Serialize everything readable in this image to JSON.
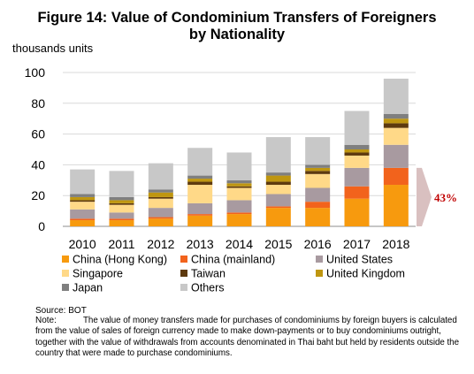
{
  "figure": {
    "title_line1": "Figure 14: Value of Condominium Transfers of Foreigners",
    "title_line2": "by Nationality",
    "unit_label": "thousands units"
  },
  "chart_data": {
    "type": "bar",
    "stacked": true,
    "title": "Figure 14: Value of Condominium Transfers of Foreigners by Nationality",
    "ylabel": "thousands units",
    "ylim": [
      0,
      100
    ],
    "yticks": [
      0,
      20,
      40,
      60,
      80,
      100
    ],
    "grid": true,
    "legend_position": "bottom",
    "categories": [
      "2010",
      "2011",
      "2012",
      "2013",
      "2014",
      "2015",
      "2016",
      "2017",
      "2018"
    ],
    "series": [
      {
        "name": "China (Hong Kong)",
        "color": "#f79a0e",
        "values": [
          4,
          4,
          5,
          7,
          8,
          12,
          12,
          18,
          27
        ]
      },
      {
        "name": "China (mainland)",
        "color": "#f2631c",
        "values": [
          1,
          1,
          1,
          1,
          1,
          1,
          4,
          8,
          11
        ]
      },
      {
        "name": "United States",
        "color": "#a89aa0",
        "values": [
          6,
          4,
          6,
          7,
          8,
          8,
          9,
          12,
          15
        ]
      },
      {
        "name": "Singapore",
        "color": "#ffd988",
        "values": [
          5,
          5,
          6,
          12,
          8,
          6,
          9,
          8,
          11
        ]
      },
      {
        "name": "Taiwan",
        "color": "#5e3a0e",
        "values": [
          1,
          1,
          1,
          2,
          1,
          2,
          2,
          2,
          3
        ]
      },
      {
        "name": "United Kingdom",
        "color": "#bf9610",
        "values": [
          2,
          2,
          3,
          2,
          2,
          4,
          2,
          2,
          3
        ]
      },
      {
        "name": "Japan",
        "color": "#7f7f7f",
        "values": [
          2,
          2,
          2,
          2,
          2,
          2,
          2,
          3,
          3
        ]
      },
      {
        "name": "Others",
        "color": "#c8c8c8",
        "values": [
          16,
          17,
          17,
          18,
          18,
          23,
          18,
          22,
          23
        ]
      }
    ],
    "annotation": {
      "text": "43%",
      "color": "#c00000",
      "arrow_color": "#d9c0c0"
    }
  },
  "footer": {
    "source": "Source: BOT",
    "note_label": "Note:",
    "note_text": "The value of money transfers made for purchases of condominiums by foreign buyers is calculated from the value of sales of foreign currency made to make down-payments or to buy condominiums outright, together with the value of withdrawals from accounts denominated in Thai baht but held by residents outside the country that were made to purchase condominiums."
  }
}
